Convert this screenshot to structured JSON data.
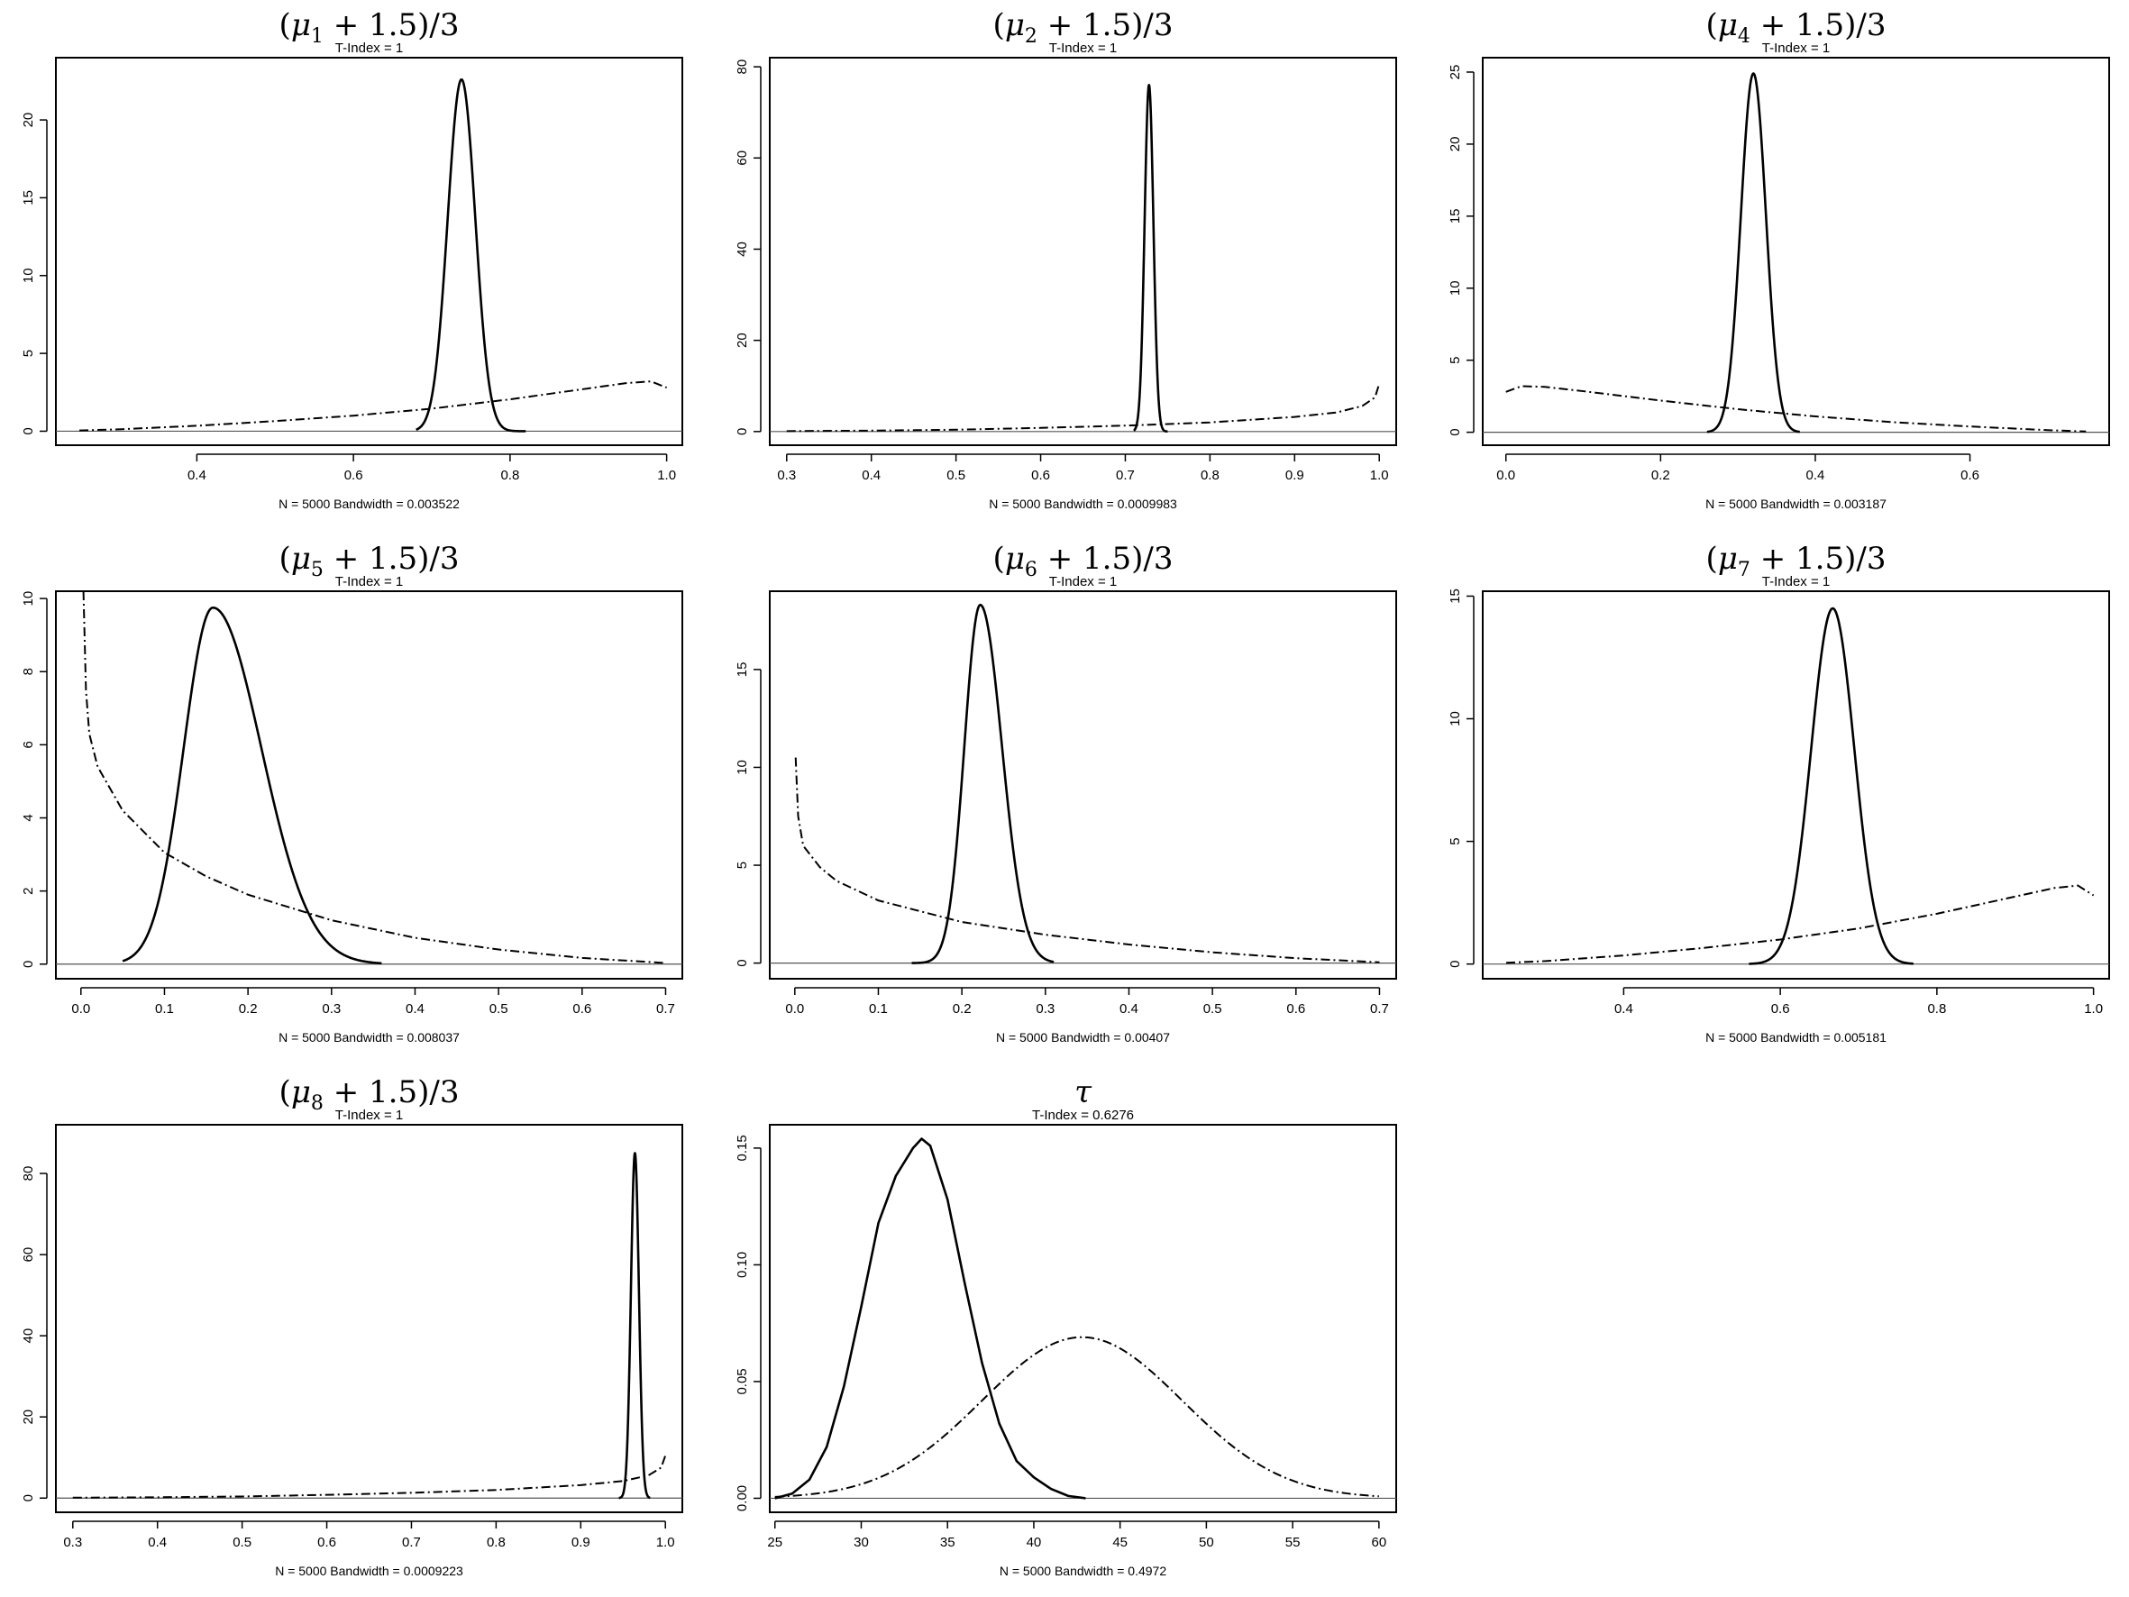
{
  "chart_data": [
    {
      "type": "line",
      "title": "(μ1 + 1.5)/3",
      "title_parts": {
        "var": "μ",
        "sub": "1",
        "rest": " + 1.5)/3"
      },
      "subtitle": "T-Index = 1",
      "xlabel": "N = 5000   Bandwidth = 0.003522",
      "xlim": [
        0.22,
        1.02
      ],
      "ylim": [
        -0.9,
        24
      ],
      "xticks": [
        0.4,
        0.6,
        0.8,
        1.0
      ],
      "yticks": [
        0,
        5,
        10,
        15,
        20
      ],
      "posterior": {
        "kind": "gauss",
        "mean": 0.738,
        "sd": 0.0176,
        "height": 22.6,
        "range": [
          0.68,
          0.82
        ]
      },
      "prior": {
        "kind": "points",
        "points": [
          [
            0.25,
            0.05
          ],
          [
            0.3,
            0.12
          ],
          [
            0.4,
            0.35
          ],
          [
            0.5,
            0.65
          ],
          [
            0.6,
            1.0
          ],
          [
            0.7,
            1.45
          ],
          [
            0.8,
            2.05
          ],
          [
            0.9,
            2.75
          ],
          [
            0.95,
            3.1
          ],
          [
            0.98,
            3.2
          ],
          [
            1.0,
            2.8
          ]
        ]
      }
    },
    {
      "type": "line",
      "title": "(μ2 + 1.5)/3",
      "title_parts": {
        "var": "μ",
        "sub": "2",
        "rest": " + 1.5)/3"
      },
      "subtitle": "T-Index = 1",
      "xlabel": "N = 5000   Bandwidth = 0.0009983",
      "xlim": [
        0.28,
        1.02
      ],
      "ylim": [
        -3,
        82
      ],
      "xticks": [
        0.3,
        0.4,
        0.5,
        0.6,
        0.7,
        0.8,
        0.9,
        1.0
      ],
      "yticks": [
        0,
        20,
        40,
        60,
        80
      ],
      "posterior": {
        "kind": "gauss",
        "mean": 0.728,
        "sd": 0.0052,
        "height": 76,
        "range": [
          0.71,
          0.75
        ]
      },
      "prior": {
        "kind": "points",
        "points": [
          [
            0.3,
            0.1
          ],
          [
            0.4,
            0.2
          ],
          [
            0.5,
            0.4
          ],
          [
            0.6,
            0.8
          ],
          [
            0.7,
            1.3
          ],
          [
            0.8,
            2.0
          ],
          [
            0.9,
            3.2
          ],
          [
            0.95,
            4.2
          ],
          [
            0.98,
            5.6
          ],
          [
            0.995,
            7.5
          ],
          [
            1.0,
            10.5
          ]
        ]
      }
    },
    {
      "type": "line",
      "title": "(μ4 + 1.5)/3",
      "title_parts": {
        "var": "μ",
        "sub": "4",
        "rest": " + 1.5)/3"
      },
      "subtitle": "T-Index = 1",
      "xlabel": "N = 5000   Bandwidth = 0.003187",
      "xlim": [
        -0.03,
        0.78
      ],
      "ylim": [
        -0.9,
        26
      ],
      "xticks": [
        0.0,
        0.2,
        0.4,
        0.6
      ],
      "yticks": [
        0,
        5,
        10,
        15,
        20,
        25
      ],
      "posterior": {
        "kind": "gauss",
        "mean": 0.32,
        "sd": 0.0162,
        "height": 24.9,
        "range": [
          0.26,
          0.38
        ]
      },
      "prior": {
        "kind": "points",
        "points": [
          [
            0.0,
            2.8
          ],
          [
            0.02,
            3.2
          ],
          [
            0.05,
            3.15
          ],
          [
            0.1,
            2.85
          ],
          [
            0.2,
            2.2
          ],
          [
            0.3,
            1.6
          ],
          [
            0.4,
            1.1
          ],
          [
            0.5,
            0.7
          ],
          [
            0.6,
            0.4
          ],
          [
            0.7,
            0.15
          ],
          [
            0.75,
            0.05
          ]
        ]
      }
    },
    {
      "type": "line",
      "title": "(μ5 + 1.5)/3",
      "title_parts": {
        "var": "μ",
        "sub": "5",
        "rest": " + 1.5)/3"
      },
      "subtitle": "T-Index = 1",
      "xlabel": "N = 5000   Bandwidth = 0.008037",
      "xlim": [
        -0.03,
        0.72
      ],
      "ylim": [
        -0.4,
        10.2
      ],
      "xticks": [
        0.0,
        0.1,
        0.2,
        0.3,
        0.4,
        0.5,
        0.6,
        0.7
      ],
      "yticks": [
        0,
        2,
        4,
        6,
        8,
        10
      ],
      "posterior": {
        "kind": "skew",
        "mean": 0.158,
        "sdl": 0.035,
        "sdr": 0.058,
        "height": 9.75,
        "range": [
          0.05,
          0.36
        ]
      },
      "prior": {
        "kind": "points",
        "points": [
          [
            0.003,
            10.2
          ],
          [
            0.006,
            7.5
          ],
          [
            0.01,
            6.3
          ],
          [
            0.02,
            5.4
          ],
          [
            0.05,
            4.2
          ],
          [
            0.1,
            3.05
          ],
          [
            0.15,
            2.4
          ],
          [
            0.2,
            1.9
          ],
          [
            0.3,
            1.2
          ],
          [
            0.4,
            0.72
          ],
          [
            0.5,
            0.4
          ],
          [
            0.6,
            0.17
          ],
          [
            0.7,
            0.03
          ]
        ]
      }
    },
    {
      "type": "line",
      "title": "(μ6 + 1.5)/3",
      "title_parts": {
        "var": "μ",
        "sub": "6",
        "rest": " + 1.5)/3"
      },
      "subtitle": "T-Index = 1",
      "xlabel": "N = 5000   Bandwidth = 0.00407",
      "xlim": [
        -0.03,
        0.72
      ],
      "ylim": [
        -0.8,
        19
      ],
      "xticks": [
        0.0,
        0.1,
        0.2,
        0.3,
        0.4,
        0.5,
        0.6,
        0.7
      ],
      "yticks": [
        0,
        5,
        10,
        15
      ],
      "posterior": {
        "kind": "skew",
        "mean": 0.222,
        "sdl": 0.019,
        "sdr": 0.026,
        "height": 18.3,
        "range": [
          0.14,
          0.31
        ]
      },
      "prior": {
        "kind": "points",
        "points": [
          [
            0.001,
            10.5
          ],
          [
            0.004,
            7.5
          ],
          [
            0.01,
            6.0
          ],
          [
            0.03,
            4.9
          ],
          [
            0.05,
            4.2
          ],
          [
            0.1,
            3.2
          ],
          [
            0.2,
            2.1
          ],
          [
            0.3,
            1.45
          ],
          [
            0.4,
            0.95
          ],
          [
            0.5,
            0.55
          ],
          [
            0.6,
            0.25
          ],
          [
            0.7,
            0.04
          ]
        ]
      }
    },
    {
      "type": "line",
      "title": "(μ7 + 1.5)/3",
      "title_parts": {
        "var": "μ",
        "sub": "7",
        "rest": " + 1.5)/3"
      },
      "subtitle": "T-Index = 1",
      "xlabel": "N = 5000   Bandwidth = 0.005181",
      "xlim": [
        0.22,
        1.02
      ],
      "ylim": [
        -0.6,
        15.2
      ],
      "xticks": [
        0.4,
        0.6,
        0.8,
        1.0
      ],
      "yticks": [
        0,
        5,
        10,
        15
      ],
      "posterior": {
        "kind": "gauss",
        "mean": 0.667,
        "sd": 0.0275,
        "height": 14.5,
        "range": [
          0.56,
          0.77
        ]
      },
      "prior": {
        "kind": "points",
        "points": [
          [
            0.25,
            0.05
          ],
          [
            0.3,
            0.12
          ],
          [
            0.4,
            0.35
          ],
          [
            0.5,
            0.65
          ],
          [
            0.6,
            1.0
          ],
          [
            0.7,
            1.45
          ],
          [
            0.8,
            2.05
          ],
          [
            0.9,
            2.75
          ],
          [
            0.95,
            3.1
          ],
          [
            0.98,
            3.2
          ],
          [
            1.0,
            2.8
          ]
        ]
      }
    },
    {
      "type": "line",
      "title": "(μ8 + 1.5)/3",
      "title_parts": {
        "var": "μ",
        "sub": "8",
        "rest": " + 1.5)/3"
      },
      "subtitle": "T-Index = 1",
      "xlabel": "N = 5000   Bandwidth = 0.0009223",
      "xlim": [
        0.28,
        1.02
      ],
      "ylim": [
        -3.5,
        92
      ],
      "xticks": [
        0.3,
        0.4,
        0.5,
        0.6,
        0.7,
        0.8,
        0.9,
        1.0
      ],
      "yticks": [
        0,
        20,
        40,
        60,
        80
      ],
      "posterior": {
        "kind": "gauss",
        "mean": 0.964,
        "sd": 0.0047,
        "height": 85,
        "range": [
          0.945,
          0.982
        ]
      },
      "prior": {
        "kind": "points",
        "points": [
          [
            0.3,
            0.1
          ],
          [
            0.4,
            0.2
          ],
          [
            0.5,
            0.4
          ],
          [
            0.6,
            0.8
          ],
          [
            0.7,
            1.3
          ],
          [
            0.8,
            2.0
          ],
          [
            0.9,
            3.2
          ],
          [
            0.95,
            4.2
          ],
          [
            0.98,
            5.6
          ],
          [
            0.995,
            7.5
          ],
          [
            1.0,
            10.5
          ]
        ]
      }
    },
    {
      "type": "line",
      "title": "τ",
      "title_parts": {
        "var": "τ",
        "sub": "",
        "rest": ""
      },
      "subtitle": "T-Index  = 0.6276",
      "xlabel": "N = 5000   Bandwidth = 0.4972",
      "xlim": [
        24.7,
        61
      ],
      "ylim": [
        -0.006,
        0.16
      ],
      "xticks": [
        25,
        30,
        35,
        40,
        45,
        50,
        55,
        60
      ],
      "yticks": [
        0.0,
        0.05,
        0.1,
        0.15
      ],
      "ytick_labels": [
        "0.00",
        "0.05",
        "0.10",
        "0.15"
      ],
      "posterior": {
        "kind": "points",
        "points": [
          [
            25,
            0.0
          ],
          [
            26,
            0.002
          ],
          [
            27,
            0.008
          ],
          [
            28,
            0.022
          ],
          [
            29,
            0.048
          ],
          [
            30,
            0.082
          ],
          [
            31,
            0.118
          ],
          [
            32,
            0.138
          ],
          [
            33,
            0.15
          ],
          [
            33.5,
            0.154
          ],
          [
            34,
            0.151
          ],
          [
            35,
            0.128
          ],
          [
            36,
            0.092
          ],
          [
            37,
            0.058
          ],
          [
            38,
            0.032
          ],
          [
            39,
            0.016
          ],
          [
            40,
            0.009
          ],
          [
            41,
            0.004
          ],
          [
            42,
            0.001
          ],
          [
            43,
            0.0
          ]
        ]
      },
      "prior": {
        "kind": "gauss",
        "mean": 42.8,
        "sd": 5.8,
        "height": 0.069,
        "range": [
          25,
          60
        ]
      }
    }
  ]
}
